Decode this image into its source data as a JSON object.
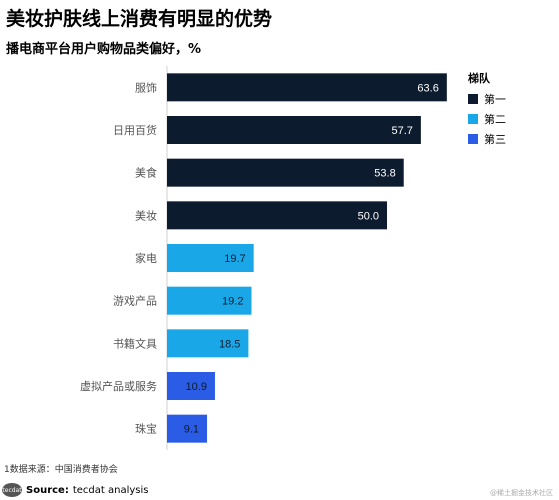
{
  "title": "美妆护肤线上消费有明显的优势",
  "subtitle": "播电商平台用户购物品类偏好，%",
  "legend": {
    "title": "梯队",
    "items": [
      {
        "label": "第一",
        "color": "#0d1b2e"
      },
      {
        "label": "第二",
        "color": "#19a7e8"
      },
      {
        "label": "第三",
        "color": "#2a5ce6"
      }
    ]
  },
  "chart_data": {
    "type": "bar",
    "orientation": "horizontal",
    "title": "美妆护肤线上消费有明显的优势",
    "subtitle": "播电商平台用户购物品类偏好，%",
    "categories": [
      "服饰",
      "日用百货",
      "美食",
      "美妆",
      "家电",
      "游戏产品",
      "书籍文具",
      "虚拟产品或服务",
      "珠宝"
    ],
    "values": [
      63.6,
      57.7,
      53.8,
      50.0,
      19.7,
      19.2,
      18.5,
      10.9,
      9.1
    ],
    "value_labels": [
      "63.6",
      "57.7",
      "53.8",
      "50.0",
      "19.7",
      "19.2",
      "18.5",
      "10.9",
      "9.1"
    ],
    "tiers": [
      "第一",
      "第一",
      "第一",
      "第一",
      "第二",
      "第二",
      "第二",
      "第三",
      "第三"
    ],
    "xlim": [
      0,
      70
    ],
    "grid": false,
    "legend_position": "top-right"
  },
  "footnote": "1数据来源：中国消费者协会",
  "source": {
    "logo_text": "tecdat",
    "label": "Source:",
    "text": "tecdat analysis"
  },
  "watermark": "@稀土掘金技术社区"
}
